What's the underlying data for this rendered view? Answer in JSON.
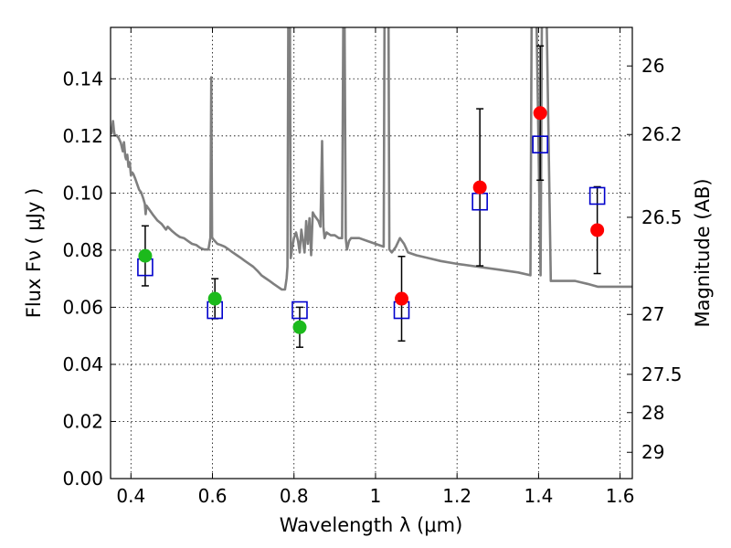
{
  "chart_data": {
    "type": "scatter",
    "xlabel": "Wavelength  λ (μm)",
    "ylabel": "Flux  Fν  ( μJy )",
    "y2label": "Magnitude (AB)",
    "xlim": [
      0.35,
      1.63
    ],
    "ylim": [
      0.0,
      0.158
    ],
    "grid": true,
    "x_ticks": [
      "0.4",
      "0.6",
      "0.8",
      "1",
      "1.2",
      "1.4",
      "1.6"
    ],
    "y_ticks": [
      "0.00",
      "0.02",
      "0.04",
      "0.06",
      "0.08",
      "0.10",
      "0.12",
      "0.14"
    ],
    "y2_ticks": [
      {
        "label": "26",
        "flux": 0.1445
      },
      {
        "label": "26.2",
        "flux": 0.1205
      },
      {
        "label": "26.5",
        "flux": 0.0915
      },
      {
        "label": "27",
        "flux": 0.0575
      },
      {
        "label": "27.5",
        "flux": 0.0365
      },
      {
        "label": "28",
        "flux": 0.0231
      },
      {
        "label": "29",
        "flux": 0.0092
      }
    ],
    "colors": {
      "spectrum": "#7f7f7f",
      "observed_optical": "#1cba1c",
      "observed_nir": "#ff0000",
      "model": "#0000cc",
      "errorbar": "#000000"
    },
    "model_fluxes": [
      {
        "x": 0.435,
        "y": 0.074
      },
      {
        "x": 0.606,
        "y": 0.059
      },
      {
        "x": 0.814,
        "y": 0.059
      },
      {
        "x": 1.064,
        "y": 0.059
      },
      {
        "x": 1.256,
        "y": 0.097
      },
      {
        "x": 1.404,
        "y": 0.117
      },
      {
        "x": 1.544,
        "y": 0.099
      }
    ],
    "observed_fluxes": [
      {
        "x": 0.435,
        "y": 0.078,
        "err": 0.0105,
        "color": "observed_optical"
      },
      {
        "x": 0.606,
        "y": 0.063,
        "err": 0.007,
        "color": "observed_optical"
      },
      {
        "x": 0.814,
        "y": 0.053,
        "err": 0.007,
        "color": "observed_optical"
      },
      {
        "x": 1.064,
        "y": 0.063,
        "err": 0.0148,
        "color": "observed_nir"
      },
      {
        "x": 1.256,
        "y": 0.102,
        "err": 0.0275,
        "color": "observed_nir"
      },
      {
        "x": 1.404,
        "y": 0.128,
        "err": 0.0235,
        "color": "observed_nir"
      },
      {
        "x": 1.544,
        "y": 0.087,
        "err": 0.0152,
        "color": "observed_nir"
      }
    ],
    "spectrum": [
      [
        0.352,
        0.1205
      ],
      [
        0.356,
        0.1252
      ],
      [
        0.358,
        0.1222
      ],
      [
        0.36,
        0.1202
      ],
      [
        0.365,
        0.1202
      ],
      [
        0.37,
        0.1192
      ],
      [
        0.375,
        0.1176
      ],
      [
        0.38,
        0.1146
      ],
      [
        0.383,
        0.1178
      ],
      [
        0.386,
        0.1128
      ],
      [
        0.388,
        0.1118
      ],
      [
        0.391,
        0.1134
      ],
      [
        0.394,
        0.1092
      ],
      [
        0.397,
        0.1108
      ],
      [
        0.4,
        0.1062
      ],
      [
        0.403,
        0.1072
      ],
      [
        0.406,
        0.1066
      ],
      [
        0.41,
        0.1052
      ],
      [
        0.415,
        0.1032
      ],
      [
        0.42,
        0.1012
      ],
      [
        0.425,
        0.1002
      ],
      [
        0.43,
        0.0982
      ],
      [
        0.434,
        0.0962
      ],
      [
        0.436,
        0.0926
      ],
      [
        0.438,
        0.0956
      ],
      [
        0.445,
        0.0942
      ],
      [
        0.455,
        0.0922
      ],
      [
        0.465,
        0.0904
      ],
      [
        0.475,
        0.0892
      ],
      [
        0.486,
        0.0872
      ],
      [
        0.49,
        0.0882
      ],
      [
        0.5,
        0.0868
      ],
      [
        0.51,
        0.0856
      ],
      [
        0.52,
        0.0846
      ],
      [
        0.53,
        0.0842
      ],
      [
        0.54,
        0.0832
      ],
      [
        0.55,
        0.0822
      ],
      [
        0.56,
        0.0818
      ],
      [
        0.57,
        0.0808
      ],
      [
        0.58,
        0.0802
      ],
      [
        0.59,
        0.0802
      ],
      [
        0.595,
        0.0845
      ],
      [
        0.597,
        0.1405
      ],
      [
        0.599,
        0.0845
      ],
      [
        0.602,
        0.0838
      ],
      [
        0.612,
        0.0822
      ],
      [
        0.62,
        0.0818
      ],
      [
        0.63,
        0.0812
      ],
      [
        0.64,
        0.0802
      ],
      [
        0.65,
        0.0792
      ],
      [
        0.66,
        0.0782
      ],
      [
        0.67,
        0.0772
      ],
      [
        0.68,
        0.0762
      ],
      [
        0.69,
        0.0752
      ],
      [
        0.7,
        0.0742
      ],
      [
        0.71,
        0.0728
      ],
      [
        0.72,
        0.0712
      ],
      [
        0.73,
        0.0702
      ],
      [
        0.74,
        0.0692
      ],
      [
        0.75,
        0.0682
      ],
      [
        0.76,
        0.0672
      ],
      [
        0.77,
        0.0662
      ],
      [
        0.778,
        0.0662
      ],
      [
        0.782,
        0.0702
      ],
      [
        0.784,
        0.0742
      ],
      [
        0.786,
        0.1602
      ],
      [
        0.79,
        0.1602
      ],
      [
        0.792,
        0.0772
      ],
      [
        0.795,
        0.0802
      ],
      [
        0.8,
        0.0842
      ],
      [
        0.805,
        0.0862
      ],
      [
        0.81,
        0.0832
      ],
      [
        0.814,
        0.0792
      ],
      [
        0.818,
        0.0872
      ],
      [
        0.822,
        0.0832
      ],
      [
        0.826,
        0.0792
      ],
      [
        0.83,
        0.0902
      ],
      [
        0.834,
        0.0822
      ],
      [
        0.838,
        0.0912
      ],
      [
        0.842,
        0.0782
      ],
      [
        0.846,
        0.0932
      ],
      [
        0.85,
        0.0922
      ],
      [
        0.855,
        0.0912
      ],
      [
        0.86,
        0.0902
      ],
      [
        0.865,
        0.0882
      ],
      [
        0.869,
        0.1182
      ],
      [
        0.872,
        0.0882
      ],
      [
        0.875,
        0.0842
      ],
      [
        0.88,
        0.0862
      ],
      [
        0.89,
        0.0852
      ],
      [
        0.9,
        0.0852
      ],
      [
        0.91,
        0.0842
      ],
      [
        0.918,
        0.0842
      ],
      [
        0.921,
        0.1602
      ],
      [
        0.924,
        0.1602
      ],
      [
        0.927,
        0.0842
      ],
      [
        0.93,
        0.0802
      ],
      [
        0.935,
        0.0832
      ],
      [
        0.94,
        0.0842
      ],
      [
        0.96,
        0.0842
      ],
      [
        0.98,
        0.0832
      ],
      [
        1.0,
        0.0822
      ],
      [
        1.02,
        0.0812
      ],
      [
        1.022,
        0.1602
      ],
      [
        1.032,
        0.1602
      ],
      [
        1.034,
        0.0802
      ],
      [
        1.04,
        0.0792
      ],
      [
        1.05,
        0.0812
      ],
      [
        1.06,
        0.0842
      ],
      [
        1.07,
        0.0822
      ],
      [
        1.08,
        0.0792
      ],
      [
        1.1,
        0.0782
      ],
      [
        1.13,
        0.0772
      ],
      [
        1.16,
        0.0762
      ],
      [
        1.2,
        0.0752
      ],
      [
        1.25,
        0.0742
      ],
      [
        1.3,
        0.0732
      ],
      [
        1.35,
        0.0722
      ],
      [
        1.38,
        0.0712
      ],
      [
        1.383,
        0.1602
      ],
      [
        1.395,
        0.1602
      ],
      [
        1.405,
        0.0712
      ],
      [
        1.408,
        0.1602
      ],
      [
        1.42,
        0.1602
      ],
      [
        1.43,
        0.0692
      ],
      [
        1.46,
        0.0692
      ],
      [
        1.49,
        0.0692
      ],
      [
        1.52,
        0.0682
      ],
      [
        1.545,
        0.0672
      ],
      [
        1.56,
        0.0672
      ],
      [
        1.58,
        0.0672
      ],
      [
        1.6,
        0.0672
      ],
      [
        1.63,
        0.0672
      ]
    ]
  }
}
